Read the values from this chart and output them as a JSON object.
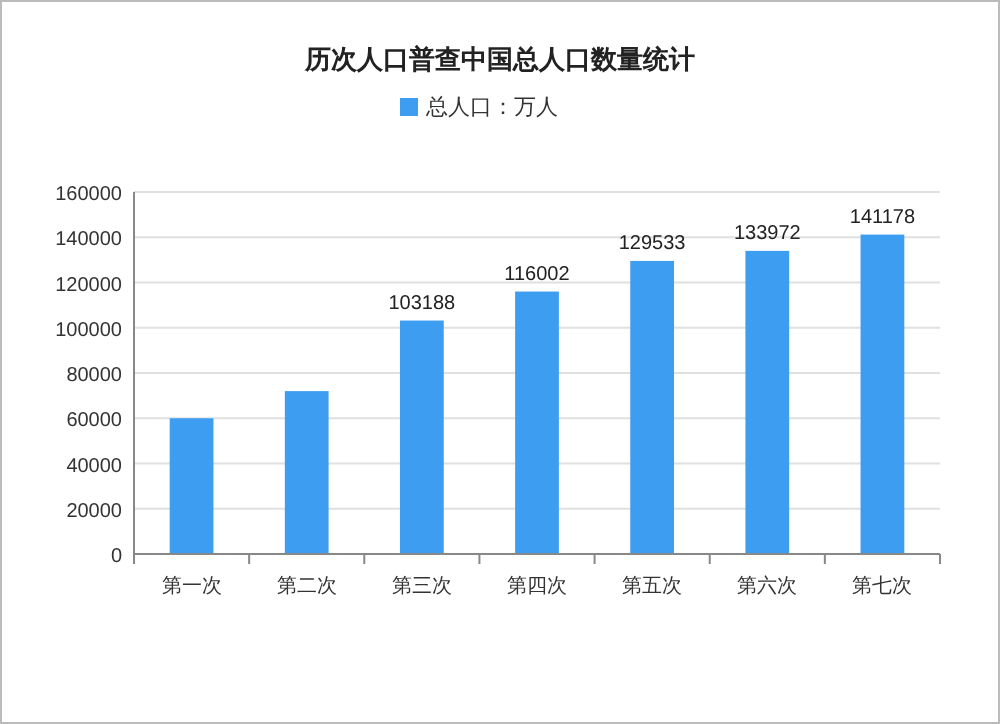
{
  "chart_data": {
    "type": "bar",
    "title": "历次人口普查中国总人口数量统计",
    "categories": [
      "第一次",
      "第二次",
      "第三次",
      "第四次",
      "第五次",
      "第六次",
      "第七次"
    ],
    "series": [
      {
        "name": "总人口：万人",
        "color": "#3d9df0",
        "values": [
          60000,
          72000,
          103188,
          116002,
          129533,
          133972,
          141178
        ]
      }
    ],
    "value_labels": [
      null,
      null,
      "103188",
      "116002",
      "129533",
      "133972",
      "141178"
    ],
    "ylim": [
      0,
      160000
    ],
    "yticks": [
      0,
      20000,
      40000,
      60000,
      80000,
      100000,
      120000,
      140000,
      160000
    ],
    "grid": "y",
    "legend": "top"
  }
}
